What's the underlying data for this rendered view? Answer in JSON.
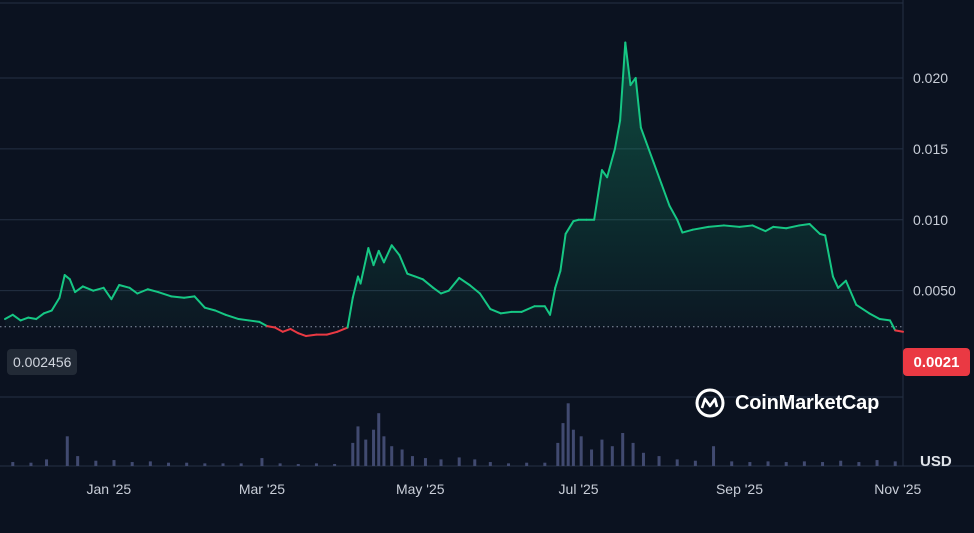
{
  "chart_data": {
    "type": "area",
    "currency_label": "USD",
    "watermark": "CoinMarketCap",
    "reference_value_label": "0.002456",
    "reference_value": 0.002456,
    "current_price_label": "0.0021",
    "current_price": 0.0021,
    "y_ticks": [
      "0.020",
      "0.015",
      "0.010",
      "0.0050"
    ],
    "y_tick_values": [
      0.02,
      0.015,
      0.01,
      0.005
    ],
    "x_ticks": [
      "Jan '25",
      "Mar '25",
      "May '25",
      "Jul '25",
      "Sep '25",
      "Nov '25"
    ],
    "x_tick_dates": [
      "2025-01-01",
      "2025-03-01",
      "2025-05-01",
      "2025-07-01",
      "2025-09-01",
      "2025-11-01"
    ],
    "xlim": [
      "2024-11-22",
      "2025-11-03"
    ],
    "ylim": [
      -0.0025,
      0.0255
    ],
    "colors": {
      "up": "#16c784",
      "down": "#ea3943",
      "volume": "#414a70",
      "background": "#0b1220"
    },
    "price_series": [
      [
        "2024-11-22",
        0.003
      ],
      [
        "2024-11-25",
        0.0033
      ],
      [
        "2024-11-28",
        0.0029
      ],
      [
        "2024-12-01",
        0.0031
      ],
      [
        "2024-12-04",
        0.003
      ],
      [
        "2024-12-07",
        0.0034
      ],
      [
        "2024-12-10",
        0.0036
      ],
      [
        "2024-12-13",
        0.0045
      ],
      [
        "2024-12-15",
        0.0061
      ],
      [
        "2024-12-17",
        0.0058
      ],
      [
        "2024-12-19",
        0.0049
      ],
      [
        "2024-12-22",
        0.0053
      ],
      [
        "2024-12-26",
        0.005
      ],
      [
        "2024-12-30",
        0.0052
      ],
      [
        "2025-01-02",
        0.0044
      ],
      [
        "2025-01-05",
        0.0054
      ],
      [
        "2025-01-09",
        0.0052
      ],
      [
        "2025-01-12",
        0.0048
      ],
      [
        "2025-01-16",
        0.0051
      ],
      [
        "2025-01-20",
        0.0049
      ],
      [
        "2025-01-25",
        0.0046
      ],
      [
        "2025-01-30",
        0.0045
      ],
      [
        "2025-02-03",
        0.0046
      ],
      [
        "2025-02-07",
        0.0038
      ],
      [
        "2025-02-11",
        0.0036
      ],
      [
        "2025-02-15",
        0.0033
      ],
      [
        "2025-02-20",
        0.003
      ],
      [
        "2025-02-24",
        0.0029
      ],
      [
        "2025-02-28",
        0.0028
      ],
      [
        "2025-03-03",
        0.0025
      ],
      [
        "2025-03-06",
        0.0024
      ],
      [
        "2025-03-09",
        0.0021
      ],
      [
        "2025-03-12",
        0.0023
      ],
      [
        "2025-03-15",
        0.002
      ],
      [
        "2025-03-18",
        0.0018
      ],
      [
        "2025-03-22",
        0.0019
      ],
      [
        "2025-03-26",
        0.0019
      ],
      [
        "2025-03-30",
        0.0021
      ],
      [
        "2025-04-03",
        0.0024
      ],
      [
        "2025-04-05",
        0.0045
      ],
      [
        "2025-04-07",
        0.006
      ],
      [
        "2025-04-08",
        0.0055
      ],
      [
        "2025-04-11",
        0.008
      ],
      [
        "2025-04-13",
        0.0068
      ],
      [
        "2025-04-15",
        0.0078
      ],
      [
        "2025-04-17",
        0.007
      ],
      [
        "2025-04-20",
        0.0082
      ],
      [
        "2025-04-23",
        0.0075
      ],
      [
        "2025-04-26",
        0.0062
      ],
      [
        "2025-04-29",
        0.006
      ],
      [
        "2025-05-02",
        0.0058
      ],
      [
        "2025-05-06",
        0.0052
      ],
      [
        "2025-05-09",
        0.0048
      ],
      [
        "2025-05-12",
        0.005
      ],
      [
        "2025-05-16",
        0.0059
      ],
      [
        "2025-05-20",
        0.0054
      ],
      [
        "2025-05-24",
        0.0048
      ],
      [
        "2025-05-28",
        0.0037
      ],
      [
        "2025-06-01",
        0.0034
      ],
      [
        "2025-06-05",
        0.0035
      ],
      [
        "2025-06-09",
        0.0035
      ],
      [
        "2025-06-14",
        0.0039
      ],
      [
        "2025-06-18",
        0.0039
      ],
      [
        "2025-06-20",
        0.0033
      ],
      [
        "2025-06-22",
        0.0052
      ],
      [
        "2025-06-24",
        0.0064
      ],
      [
        "2025-06-26",
        0.009
      ],
      [
        "2025-06-29",
        0.0099
      ],
      [
        "2025-07-01",
        0.01
      ],
      [
        "2025-07-04",
        0.01
      ],
      [
        "2025-07-07",
        0.01
      ],
      [
        "2025-07-10",
        0.0135
      ],
      [
        "2025-07-12",
        0.013
      ],
      [
        "2025-07-15",
        0.015
      ],
      [
        "2025-07-17",
        0.017
      ],
      [
        "2025-07-19",
        0.0225
      ],
      [
        "2025-07-21",
        0.0195
      ],
      [
        "2025-07-23",
        0.02
      ],
      [
        "2025-07-25",
        0.0165
      ],
      [
        "2025-07-27",
        0.0155
      ],
      [
        "2025-07-30",
        0.014
      ],
      [
        "2025-08-02",
        0.0125
      ],
      [
        "2025-08-05",
        0.011
      ],
      [
        "2025-08-08",
        0.01
      ],
      [
        "2025-08-10",
        0.0091
      ],
      [
        "2025-08-14",
        0.0093
      ],
      [
        "2025-08-20",
        0.0095
      ],
      [
        "2025-08-26",
        0.0096
      ],
      [
        "2025-09-01",
        0.0095
      ],
      [
        "2025-09-06",
        0.0096
      ],
      [
        "2025-09-11",
        0.0092
      ],
      [
        "2025-09-14",
        0.0095
      ],
      [
        "2025-09-19",
        0.0094
      ],
      [
        "2025-09-24",
        0.0096
      ],
      [
        "2025-09-28",
        0.0097
      ],
      [
        "2025-10-02",
        0.009
      ],
      [
        "2025-10-04",
        0.0089
      ],
      [
        "2025-10-07",
        0.006
      ],
      [
        "2025-10-09",
        0.0052
      ],
      [
        "2025-10-12",
        0.0057
      ],
      [
        "2025-10-16",
        0.004
      ],
      [
        "2025-10-21",
        0.0034
      ],
      [
        "2025-10-25",
        0.003
      ],
      [
        "2025-10-29",
        0.0029
      ],
      [
        "2025-10-31",
        0.0022
      ],
      [
        "2025-11-03",
        0.0021
      ]
    ],
    "volume_series": [
      [
        "2024-11-25",
        0.06
      ],
      [
        "2024-12-02",
        0.05
      ],
      [
        "2024-12-08",
        0.1
      ],
      [
        "2024-12-16",
        0.45
      ],
      [
        "2024-12-20",
        0.15
      ],
      [
        "2024-12-27",
        0.08
      ],
      [
        "2025-01-03",
        0.09
      ],
      [
        "2025-01-10",
        0.06
      ],
      [
        "2025-01-17",
        0.07
      ],
      [
        "2025-01-24",
        0.05
      ],
      [
        "2025-01-31",
        0.05
      ],
      [
        "2025-02-07",
        0.04
      ],
      [
        "2025-02-14",
        0.04
      ],
      [
        "2025-02-21",
        0.04
      ],
      [
        "2025-03-01",
        0.12
      ],
      [
        "2025-03-08",
        0.04
      ],
      [
        "2025-03-15",
        0.03
      ],
      [
        "2025-03-22",
        0.04
      ],
      [
        "2025-03-29",
        0.03
      ],
      [
        "2025-04-05",
        0.35
      ],
      [
        "2025-04-07",
        0.6
      ],
      [
        "2025-04-10",
        0.4
      ],
      [
        "2025-04-13",
        0.55
      ],
      [
        "2025-04-15",
        0.8
      ],
      [
        "2025-04-17",
        0.45
      ],
      [
        "2025-04-20",
        0.3
      ],
      [
        "2025-04-24",
        0.25
      ],
      [
        "2025-04-28",
        0.15
      ],
      [
        "2025-05-03",
        0.12
      ],
      [
        "2025-05-09",
        0.1
      ],
      [
        "2025-05-16",
        0.13
      ],
      [
        "2025-05-22",
        0.1
      ],
      [
        "2025-05-28",
        0.06
      ],
      [
        "2025-06-04",
        0.04
      ],
      [
        "2025-06-11",
        0.05
      ],
      [
        "2025-06-18",
        0.05
      ],
      [
        "2025-06-23",
        0.35
      ],
      [
        "2025-06-25",
        0.65
      ],
      [
        "2025-06-27",
        0.95
      ],
      [
        "2025-06-29",
        0.55
      ],
      [
        "2025-07-02",
        0.45
      ],
      [
        "2025-07-06",
        0.25
      ],
      [
        "2025-07-10",
        0.4
      ],
      [
        "2025-07-14",
        0.3
      ],
      [
        "2025-07-18",
        0.5
      ],
      [
        "2025-07-22",
        0.35
      ],
      [
        "2025-07-26",
        0.2
      ],
      [
        "2025-08-01",
        0.15
      ],
      [
        "2025-08-08",
        0.1
      ],
      [
        "2025-08-15",
        0.08
      ],
      [
        "2025-08-22",
        0.3
      ],
      [
        "2025-08-29",
        0.07
      ],
      [
        "2025-09-05",
        0.06
      ],
      [
        "2025-09-12",
        0.07
      ],
      [
        "2025-09-19",
        0.06
      ],
      [
        "2025-09-26",
        0.07
      ],
      [
        "2025-10-03",
        0.06
      ],
      [
        "2025-10-10",
        0.08
      ],
      [
        "2025-10-17",
        0.06
      ],
      [
        "2025-10-24",
        0.09
      ],
      [
        "2025-10-31",
        0.07
      ]
    ]
  }
}
